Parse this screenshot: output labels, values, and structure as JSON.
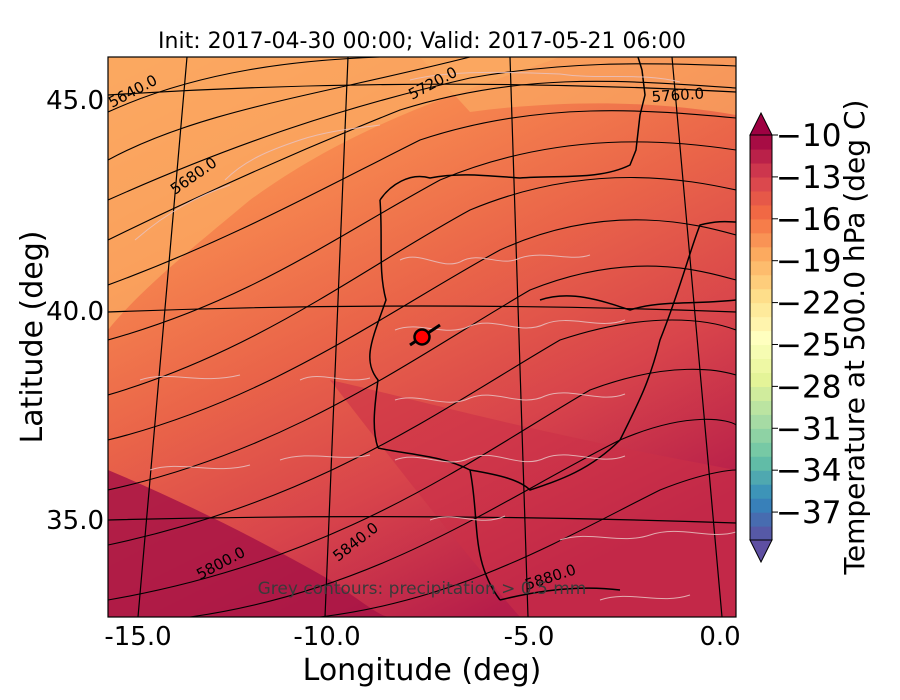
{
  "title": "Init: 2017-04-30 00:00; Valid: 2017-05-21 06:00",
  "map": {
    "xlabel": "Longitude (deg)",
    "ylabel": "Latitude (deg)",
    "lon_ticks": [
      "-15.0",
      "-10.0",
      "-5.0",
      "0.0"
    ],
    "lat_ticks": [
      "45.0",
      "40.0",
      "35.0"
    ],
    "lon_range": [
      -15.9,
      0.4
    ],
    "lat_range": [
      32.6,
      46.6
    ],
    "geopotential_contour_labels": [
      "5640.0",
      "5680.0",
      "5720.0",
      "5760.0",
      "5800.0",
      "5840.0",
      "5880.0"
    ],
    "annotation": "Grey contours: precipitation > 0.5 mm",
    "marker": {
      "lon": -7.5,
      "lat": 39.2,
      "color": "#ff0000"
    }
  },
  "colorbar": {
    "label": "Temperature at 500.0 hPa (deg C)",
    "tick_labels": [
      "−10",
      "−13",
      "−16",
      "−19",
      "−22",
      "−25",
      "−28",
      "−31",
      "−34",
      "−37"
    ],
    "range": [
      -39,
      -10
    ],
    "colormap": "Spectral_r",
    "colors": [
      "#5e4fa2",
      "#3288bd",
      "#66c2a5",
      "#abdda4",
      "#e6f598",
      "#ffffbf",
      "#fee08b",
      "#fdae61",
      "#f46d43",
      "#d53e4f",
      "#9e0142"
    ]
  }
}
